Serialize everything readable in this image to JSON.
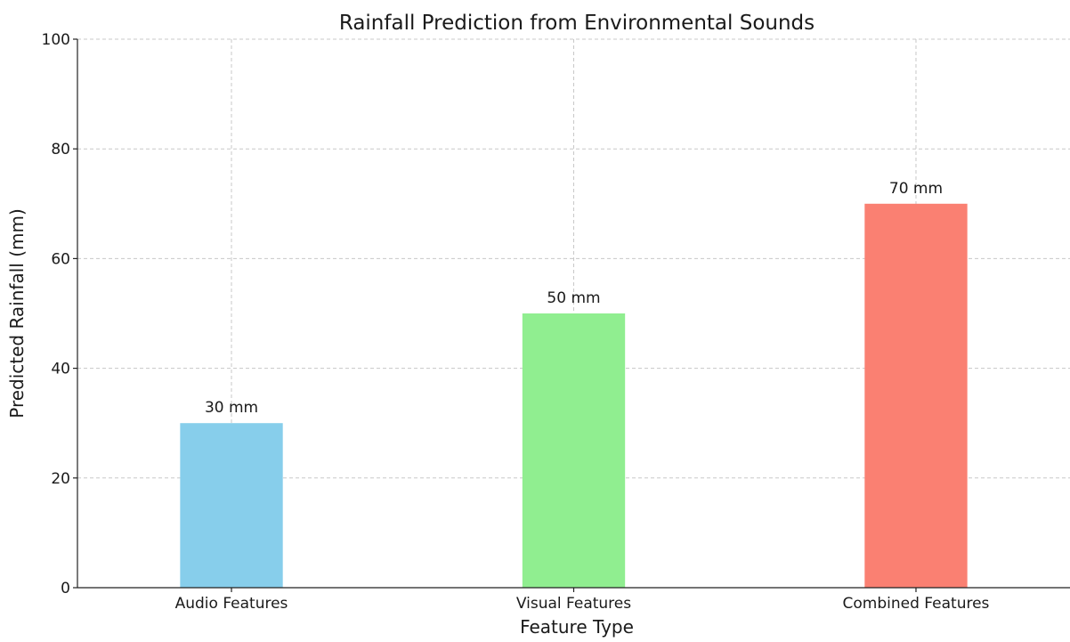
{
  "chart_data": {
    "type": "bar",
    "title": "Rainfall Prediction from Environmental Sounds",
    "xlabel": "Feature Type",
    "ylabel": "Predicted Rainfall (mm)",
    "categories": [
      "Audio Features",
      "Visual Features",
      "Combined Features"
    ],
    "values": [
      30,
      50,
      70
    ],
    "data_labels": [
      "30 mm",
      "50 mm",
      "70 mm"
    ],
    "colors": [
      "#87ceeb",
      "#90ee90",
      "#fa8072"
    ],
    "ylim": [
      0,
      100
    ],
    "yticks": [
      0,
      20,
      40,
      60,
      80,
      100
    ],
    "grid": true,
    "legend": "none"
  }
}
